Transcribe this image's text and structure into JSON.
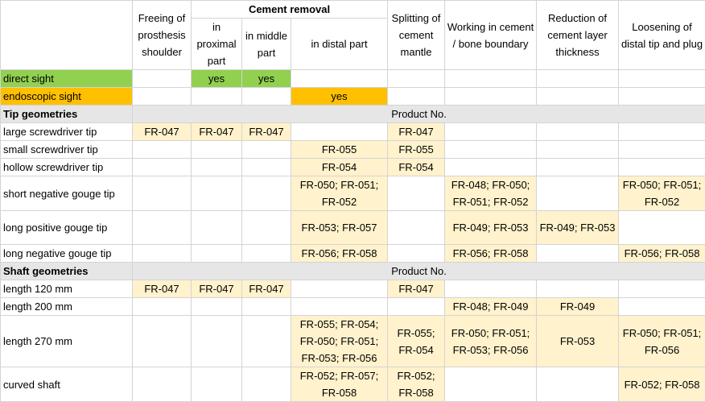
{
  "header": {
    "cement_removal": "Cement removal",
    "freeing": "Freeing of prosthesis shoulder",
    "proximal": "in proximal part",
    "middle": "in middle part",
    "distal": "in distal part",
    "splitting": "Splitting of cement mantle",
    "working": "Working in cement / bone boundary",
    "reduction": "Reduction of cement layer thickness",
    "loosening": "Loosening of distal tip and plug"
  },
  "sight": {
    "direct": "direct sight",
    "endoscopic": "endoscopic sight",
    "yes": "yes"
  },
  "sections": {
    "tip": "Tip geometries",
    "shaft": "Shaft geometries",
    "product_no": "Product No."
  },
  "rows": [
    {
      "label": "large screwdriver tip",
      "cells": [
        "FR-047",
        "FR-047",
        "FR-047",
        "",
        "FR-047",
        "",
        "",
        ""
      ]
    },
    {
      "label": "small screwdriver tip",
      "cells": [
        "",
        "",
        "",
        "FR-055",
        "FR-055",
        "",
        "",
        ""
      ]
    },
    {
      "label": "hollow screwdriver tip",
      "cells": [
        "",
        "",
        "",
        "FR-054",
        "FR-054",
        "",
        "",
        ""
      ]
    },
    {
      "label": "short negative gouge tip",
      "cells": [
        "",
        "",
        "",
        "FR-050; FR-051; FR-052",
        "",
        "FR-048; FR-050; FR-051; FR-052",
        "",
        "FR-050; FR-051; FR-052"
      ]
    },
    {
      "label": "long positive gouge tip",
      "cells": [
        "",
        "",
        "",
        "FR-053; FR-057",
        "",
        "FR-049; FR-053",
        "FR-049; FR-053",
        ""
      ]
    },
    {
      "label": "long negative gouge tip",
      "cells": [
        "",
        "",
        "",
        "FR-056; FR-058",
        "",
        "FR-056; FR-058",
        "",
        "FR-056; FR-058"
      ]
    },
    {
      "label": "length 120 mm",
      "cells": [
        "FR-047",
        "FR-047",
        "FR-047",
        "",
        "FR-047",
        "",
        "",
        ""
      ]
    },
    {
      "label": "length 200 mm",
      "cells": [
        "",
        "",
        "",
        "",
        "",
        "FR-048; FR-049",
        "FR-049",
        ""
      ]
    },
    {
      "label": "length 270 mm",
      "cells": [
        "",
        "",
        "",
        "FR-055; FR-054; FR-050; FR-051; FR-053; FR-056",
        "FR-055; FR-054",
        "FR-050; FR-051; FR-053; FR-056",
        "FR-053",
        "FR-050; FR-051; FR-056"
      ]
    },
    {
      "label": "curved shaft",
      "cells": [
        "",
        "",
        "",
        "FR-052; FR-057; FR-058",
        "FR-052; FR-058",
        "",
        "",
        "FR-052; FR-058"
      ]
    }
  ]
}
